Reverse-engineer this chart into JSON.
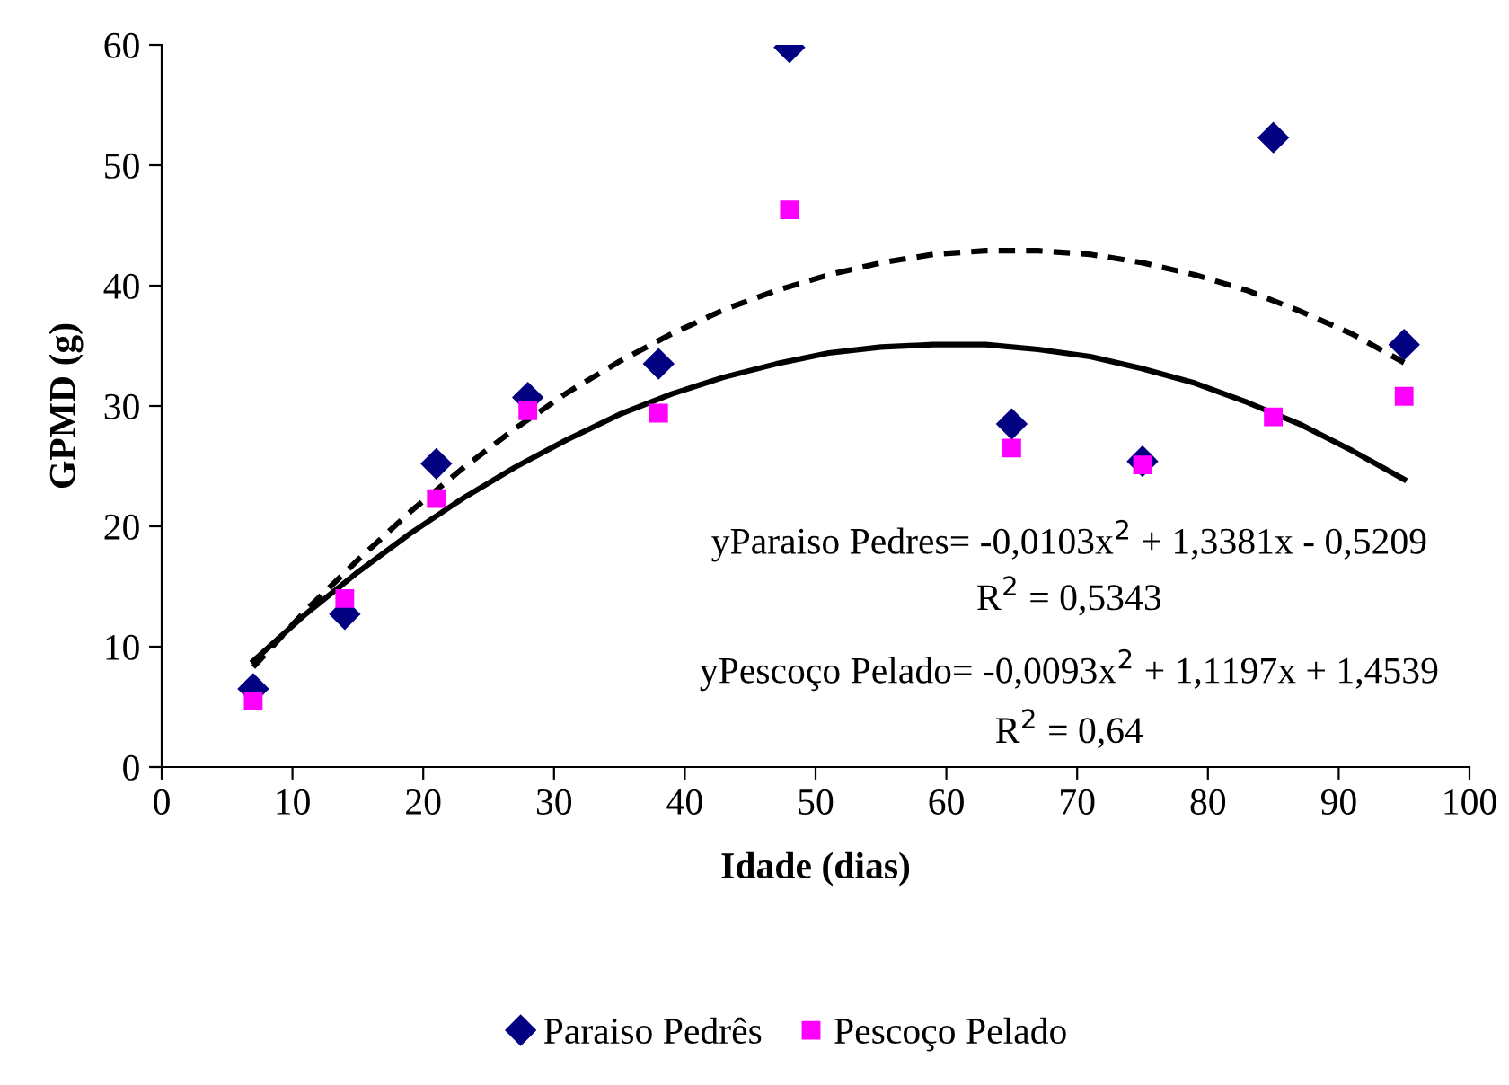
{
  "chart_data": {
    "type": "scatter",
    "xlabel": "Idade (dias)",
    "ylabel": "GPMD (g)",
    "xlim": [
      0,
      100
    ],
    "xticks": [
      0,
      10,
      20,
      30,
      40,
      50,
      60,
      70,
      80,
      90,
      100
    ],
    "ylim": [
      0,
      60
    ],
    "yticks": [
      0,
      10,
      20,
      30,
      40,
      50,
      60
    ],
    "grid": false,
    "legend": "bottom",
    "x": [
      7,
      14,
      21,
      28,
      38,
      48,
      65,
      75,
      85,
      95
    ],
    "series": [
      {
        "name": "Paraiso Pedrês",
        "color": "#000080",
        "marker": "diamond",
        "values": [
          6.5,
          12.7,
          25.2,
          30.7,
          33.5,
          59.8,
          28.5,
          25.4,
          52.3,
          35.1
        ]
      },
      {
        "name": "Pescoço Pelado",
        "color": "#ff00ff",
        "marker": "square",
        "values": [
          5.5,
          14.0,
          22.3,
          29.6,
          29.4,
          46.3,
          26.5,
          25.1,
          29.1,
          30.8
        ]
      },
      {
        "type": "line",
        "color": "#000000",
        "line_style": "dashed",
        "marker": "none",
        "x": [
          7,
          11,
          15,
          19,
          23,
          27,
          31,
          35,
          39,
          43,
          47,
          51,
          55,
          59,
          63,
          67,
          71,
          75,
          79,
          83,
          87,
          91,
          95
        ],
        "values": [
          8.3,
          13.0,
          17.2,
          21.2,
          24.8,
          28.1,
          31.1,
          33.7,
          36.0,
          38.0,
          39.6,
          40.9,
          41.9,
          42.6,
          42.9,
          42.9,
          42.6,
          41.9,
          40.9,
          39.6,
          37.9,
          36.0,
          33.6
        ]
      },
      {
        "type": "line",
        "color": "#000000",
        "line_style": "solid",
        "marker": "none",
        "x": [
          7,
          11,
          15,
          19,
          23,
          27,
          31,
          35,
          39,
          43,
          47,
          51,
          55,
          59,
          63,
          67,
          71,
          75,
          79,
          83,
          87,
          91,
          95
        ],
        "values": [
          8.8,
          12.7,
          16.2,
          19.4,
          22.3,
          24.9,
          27.2,
          29.3,
          31.0,
          32.4,
          33.5,
          34.4,
          34.9,
          35.1,
          35.1,
          34.7,
          34.1,
          33.1,
          31.9,
          30.3,
          28.5,
          26.3,
          23.9
        ]
      }
    ],
    "annotations": [
      "yParaiso Pedres= -0,0103x$^{2}$ + 1,3381x - 0,5209",
      "R$^{2}$ = 0,5343",
      "yPescoço Pelado= -0,0093x$^{2}$ + 1,1197x + 1,4539",
      "R$^{2}$ = 0,64"
    ]
  }
}
